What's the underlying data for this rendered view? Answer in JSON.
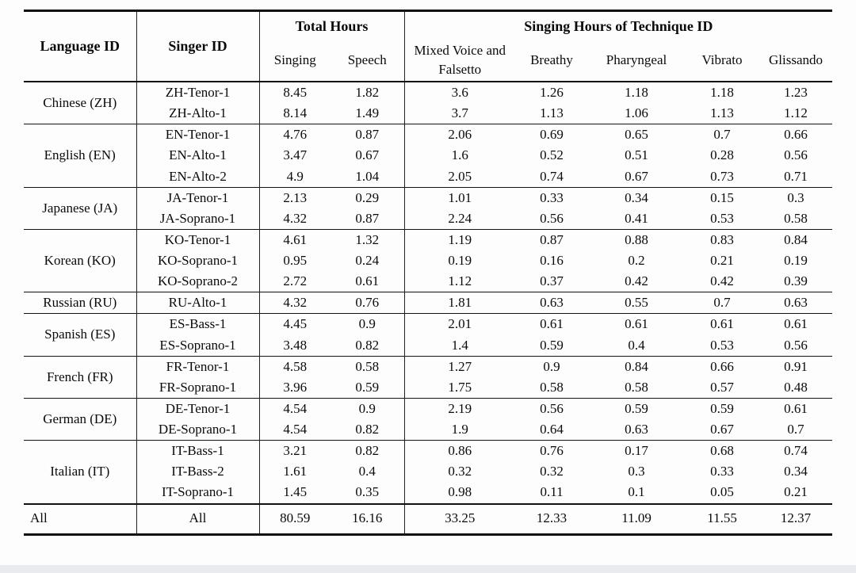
{
  "table": {
    "columns": {
      "language_id": "Language ID",
      "singer_id": "Singer ID",
      "total_hours_group": "Total Hours",
      "technique_group": "Singing Hours of Technique ID",
      "subheaders": [
        "Singing",
        "Speech",
        "Mixed Voice and Falsetto",
        "Breathy",
        "Pharyngeal",
        "Vibrato",
        "Glissando"
      ]
    },
    "groups": [
      {
        "language": "Chinese (ZH)",
        "rows": [
          {
            "singer": "ZH-Tenor-1",
            "values": [
              "8.45",
              "1.82",
              "3.6",
              "1.26",
              "1.18",
              "1.18",
              "1.23"
            ]
          },
          {
            "singer": "ZH-Alto-1",
            "values": [
              "8.14",
              "1.49",
              "3.7",
              "1.13",
              "1.06",
              "1.13",
              "1.12"
            ]
          }
        ]
      },
      {
        "language": "English (EN)",
        "rows": [
          {
            "singer": "EN-Tenor-1",
            "values": [
              "4.76",
              "0.87",
              "2.06",
              "0.69",
              "0.65",
              "0.7",
              "0.66"
            ]
          },
          {
            "singer": "EN-Alto-1",
            "values": [
              "3.47",
              "0.67",
              "1.6",
              "0.52",
              "0.51",
              "0.28",
              "0.56"
            ]
          },
          {
            "singer": "EN-Alto-2",
            "values": [
              "4.9",
              "1.04",
              "2.05",
              "0.74",
              "0.67",
              "0.73",
              "0.71"
            ]
          }
        ]
      },
      {
        "language": "Japanese (JA)",
        "rows": [
          {
            "singer": "JA-Tenor-1",
            "values": [
              "2.13",
              "0.29",
              "1.01",
              "0.33",
              "0.34",
              "0.15",
              "0.3"
            ]
          },
          {
            "singer": "JA-Soprano-1",
            "values": [
              "4.32",
              "0.87",
              "2.24",
              "0.56",
              "0.41",
              "0.53",
              "0.58"
            ]
          }
        ]
      },
      {
        "language": "Korean (KO)",
        "rows": [
          {
            "singer": "KO-Tenor-1",
            "values": [
              "4.61",
              "1.32",
              "1.19",
              "0.87",
              "0.88",
              "0.83",
              "0.84"
            ]
          },
          {
            "singer": "KO-Soprano-1",
            "values": [
              "0.95",
              "0.24",
              "0.19",
              "0.16",
              "0.2",
              "0.21",
              "0.19"
            ]
          },
          {
            "singer": "KO-Soprano-2",
            "values": [
              "2.72",
              "0.61",
              "1.12",
              "0.37",
              "0.42",
              "0.42",
              "0.39"
            ]
          }
        ]
      },
      {
        "language": "Russian (RU)",
        "rows": [
          {
            "singer": "RU-Alto-1",
            "values": [
              "4.32",
              "0.76",
              "1.81",
              "0.63",
              "0.55",
              "0.7",
              "0.63"
            ]
          }
        ]
      },
      {
        "language": "Spanish (ES)",
        "rows": [
          {
            "singer": "ES-Bass-1",
            "values": [
              "4.45",
              "0.9",
              "2.01",
              "0.61",
              "0.61",
              "0.61",
              "0.61"
            ]
          },
          {
            "singer": "ES-Soprano-1",
            "values": [
              "3.48",
              "0.82",
              "1.4",
              "0.59",
              "0.4",
              "0.53",
              "0.56"
            ]
          }
        ]
      },
      {
        "language": "French (FR)",
        "rows": [
          {
            "singer": "FR-Tenor-1",
            "values": [
              "4.58",
              "0.58",
              "1.27",
              "0.9",
              "0.84",
              "0.66",
              "0.91"
            ]
          },
          {
            "singer": "FR-Soprano-1",
            "values": [
              "3.96",
              "0.59",
              "1.75",
              "0.58",
              "0.58",
              "0.57",
              "0.48"
            ]
          }
        ]
      },
      {
        "language": "German (DE)",
        "rows": [
          {
            "singer": "DE-Tenor-1",
            "values": [
              "4.54",
              "0.9",
              "2.19",
              "0.56",
              "0.59",
              "0.59",
              "0.61"
            ]
          },
          {
            "singer": "DE-Soprano-1",
            "values": [
              "4.54",
              "0.82",
              "1.9",
              "0.64",
              "0.63",
              "0.67",
              "0.7"
            ]
          }
        ]
      },
      {
        "language": "Italian (IT)",
        "rows": [
          {
            "singer": "IT-Bass-1",
            "values": [
              "3.21",
              "0.82",
              "0.86",
              "0.76",
              "0.17",
              "0.68",
              "0.74"
            ]
          },
          {
            "singer": "IT-Bass-2",
            "values": [
              "1.61",
              "0.4",
              "0.32",
              "0.32",
              "0.3",
              "0.33",
              "0.34"
            ]
          },
          {
            "singer": "IT-Soprano-1",
            "values": [
              "1.45",
              "0.35",
              "0.98",
              "0.11",
              "0.1",
              "0.05",
              "0.21"
            ]
          }
        ]
      }
    ],
    "total_row": {
      "language": "All",
      "singer": "All",
      "values": [
        "80.59",
        "16.16",
        "33.25",
        "12.33",
        "11.09",
        "11.55",
        "12.37"
      ]
    }
  }
}
